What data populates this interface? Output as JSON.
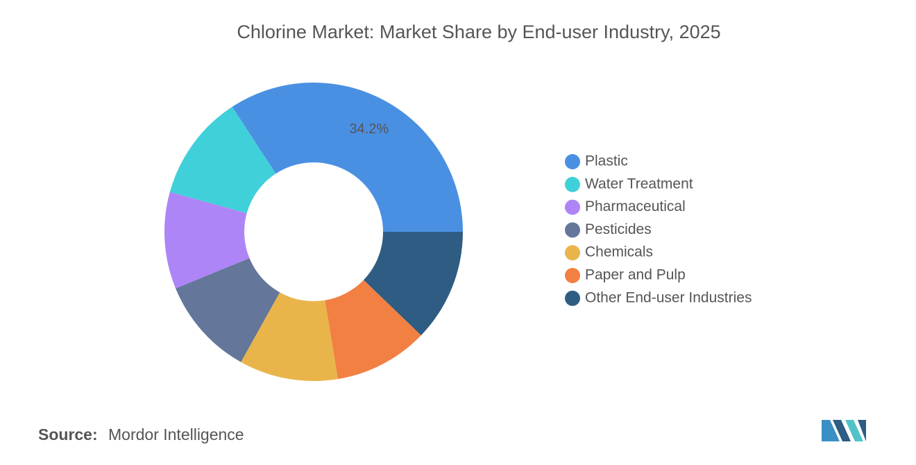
{
  "chart_data": {
    "type": "donut",
    "title": "Chlorine Market: Market Share by End-user Industry, 2025",
    "categories": [
      "Plastic",
      "Water Treatment",
      "Pharmaceutical",
      "Pesticides",
      "Chemicals",
      "Paper and Pulp",
      "Other End-user Industries"
    ],
    "values": [
      34.2,
      11.5,
      10.5,
      10.7,
      10.7,
      10.2,
      12.2
    ],
    "value_labels": [
      "34.2%",
      null,
      null,
      null,
      null,
      null,
      null
    ],
    "colors": [
      "#4a90e2",
      "#40d0da",
      "#ae85f7",
      "#64769a",
      "#e9b54b",
      "#f28043",
      "#2e5c82"
    ],
    "legend": "right"
  },
  "source_label": "Source:",
  "source": "Mordor Intelligence"
}
